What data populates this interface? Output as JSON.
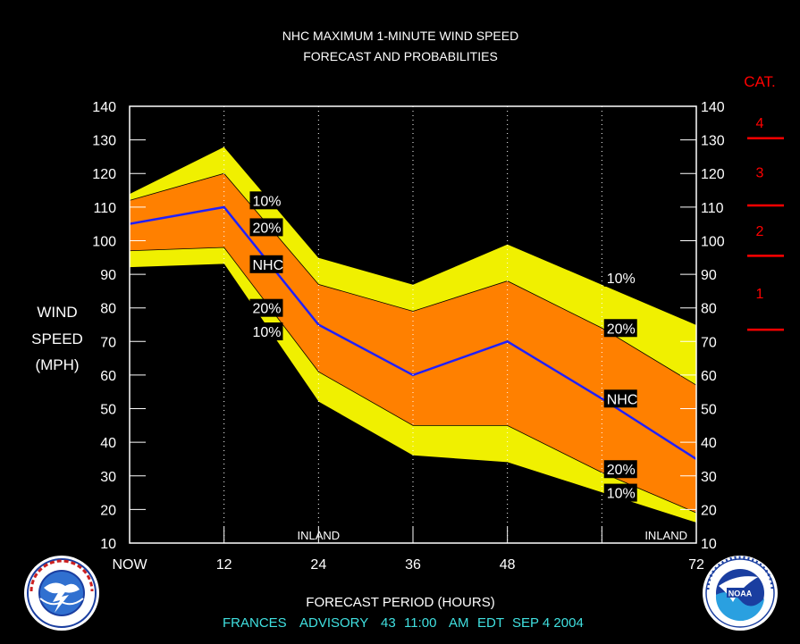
{
  "title_line1": "NHC MAXIMUM 1-MINUTE WIND SPEED",
  "title_line2": "FORECAST AND PROBABILITIES",
  "ylabel_lines": [
    "WIND",
    "SPEED",
    "(MPH)"
  ],
  "xlabel": "FORECAST PERIOD (HOURS)",
  "footer": {
    "storm": "FRANCES",
    "advisory_label": "ADVISORY",
    "advisory_number": "43",
    "time": "11:00",
    "ampm": "AM",
    "tz": "EDT",
    "date": "SEP 4 2004"
  },
  "cat_heading": "CAT.",
  "categories": [
    {
      "label": "4",
      "lower_mph": 130.5
    },
    {
      "label": "3",
      "lower_mph": 110.5
    },
    {
      "label": "2",
      "lower_mph": 95.5
    },
    {
      "label": "1",
      "lower_mph": 73.5
    }
  ],
  "colors": {
    "background": "#000000",
    "yellow_band": "#f0f000",
    "orange_band": "#ff8000",
    "nhc_line": "#2020ff",
    "category": "#ff0000",
    "footer": "#40e0e0",
    "axis_text": "#ffffff"
  },
  "chart_data": {
    "type": "area",
    "x": [
      0,
      12,
      24,
      36,
      48,
      60,
      72
    ],
    "x_tick_labels": [
      "NOW",
      "12",
      "24",
      "36",
      "48",
      "",
      "72"
    ],
    "xlim": [
      0,
      72
    ],
    "ylim": [
      10,
      140
    ],
    "y_ticks": [
      10,
      20,
      30,
      40,
      50,
      60,
      70,
      80,
      90,
      100,
      110,
      120,
      130,
      140
    ],
    "grid": "dotted vertical at 12-hour marks",
    "inland_labels": [
      {
        "x": 24,
        "text": "INLAND"
      },
      {
        "x": 72,
        "text": "INLAND"
      }
    ],
    "series": [
      {
        "name": "10%",
        "values": [
          114,
          128,
          95,
          87,
          99,
          87,
          75
        ]
      },
      {
        "name": "20%",
        "values": [
          112,
          120,
          87,
          79,
          88,
          74,
          57
        ]
      },
      {
        "name": "NHC",
        "values": [
          105,
          110,
          75,
          60,
          70,
          53,
          35
        ]
      },
      {
        "name": "20%",
        "values": [
          97,
          98,
          61,
          45,
          45,
          31,
          19
        ]
      },
      {
        "name": "10%",
        "values": [
          92,
          93,
          52,
          36,
          34,
          25,
          16
        ]
      }
    ],
    "band_labels": [
      {
        "text": "10%",
        "x": 15.5,
        "y": 112
      },
      {
        "text": "20%",
        "x": 15.5,
        "y": 104
      },
      {
        "text": "NHC",
        "x": 15.5,
        "y": 93
      },
      {
        "text": "20%",
        "x": 15.5,
        "y": 80
      },
      {
        "text": "10%",
        "x": 15.5,
        "y": 73
      },
      {
        "text": "10%",
        "x": 60.5,
        "y": 89
      },
      {
        "text": "20%",
        "x": 60.5,
        "y": 74
      },
      {
        "text": "NHC",
        "x": 60.5,
        "y": 53
      },
      {
        "text": "20%",
        "x": 60.5,
        "y": 32
      },
      {
        "text": "10%",
        "x": 60.5,
        "y": 25
      }
    ]
  }
}
